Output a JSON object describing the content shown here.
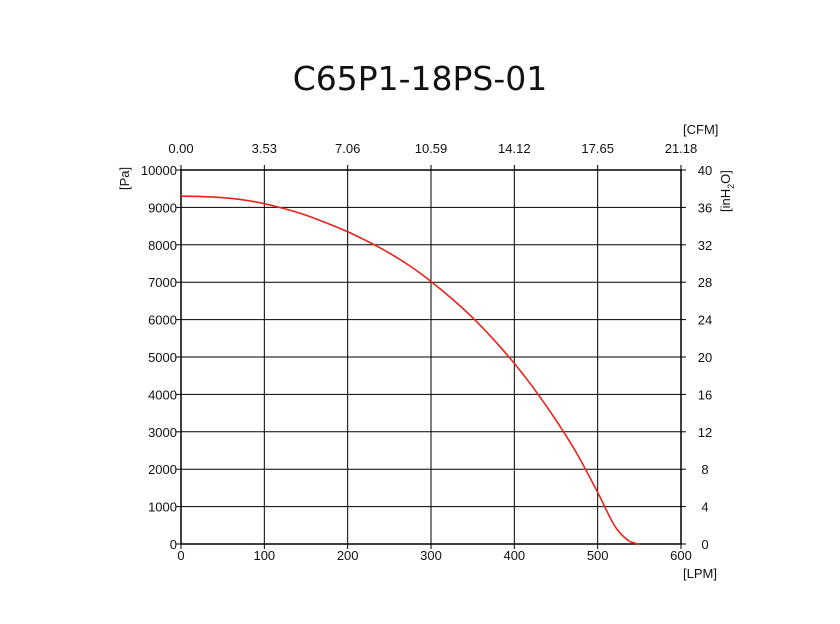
{
  "chart_data": {
    "type": "line",
    "title": "C65P1-18PS-01",
    "x_bottom": {
      "unit": "[LPM]",
      "range": [
        0,
        600
      ],
      "ticks": [
        0,
        100,
        200,
        300,
        400,
        500,
        600
      ]
    },
    "x_top": {
      "unit": "[CFM]",
      "range": [
        0,
        21.18
      ],
      "tick_labels": [
        "0.00",
        "3.53",
        "7.06",
        "10.59",
        "14.12",
        "17.65",
        "21.18"
      ]
    },
    "y_left": {
      "unit": "[Pa]",
      "range": [
        0,
        10000
      ],
      "ticks": [
        0,
        1000,
        2000,
        3000,
        4000,
        5000,
        6000,
        7000,
        8000,
        9000,
        10000
      ]
    },
    "y_right": {
      "unit_parts": [
        "[inH",
        "2",
        "O]"
      ],
      "range": [
        0,
        40
      ],
      "ticks": [
        0,
        4,
        8,
        12,
        16,
        20,
        24,
        28,
        32,
        36,
        40
      ]
    },
    "grid": true,
    "series": [
      {
        "name": "C65P1-18PS-01",
        "color": "#e8231b",
        "x": [
          0,
          25,
          50,
          75,
          100,
          125,
          150,
          175,
          200,
          225,
          250,
          275,
          300,
          325,
          350,
          375,
          400,
          425,
          450,
          475,
          500,
          520,
          535,
          545,
          550
        ],
        "y": [
          9300,
          9290,
          9260,
          9200,
          9100,
          8960,
          8790,
          8580,
          8350,
          8080,
          7780,
          7430,
          7020,
          6560,
          6050,
          5470,
          4830,
          4110,
          3310,
          2420,
          1380,
          500,
          120,
          20,
          0
        ]
      }
    ]
  }
}
